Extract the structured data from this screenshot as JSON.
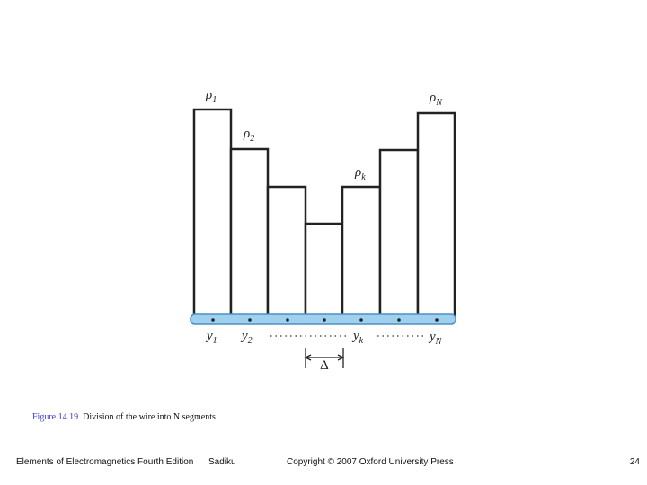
{
  "figure": {
    "labels": [
      {
        "symbol": "ρ",
        "sub": "1"
      },
      {
        "symbol": "ρ",
        "sub": "2"
      },
      {
        "symbol": "ρ",
        "sub": "k"
      },
      {
        "symbol": "ρ",
        "sub": "N"
      },
      {
        "symbol": "y",
        "sub": "1"
      },
      {
        "symbol": "y",
        "sub": "2"
      },
      {
        "symbol": "y",
        "sub": "k"
      },
      {
        "symbol": "y",
        "sub": "N"
      }
    ],
    "delta": "Δ"
  },
  "caption": {
    "number": "Figure 14.19",
    "text": "Division of the wire into N segments."
  },
  "footer": {
    "book": "Elements of Electromagnetics Fourth Edition",
    "author": "Sadiku",
    "copyright": "Copyright © 2007 Oxford University Press",
    "page": "24"
  }
}
